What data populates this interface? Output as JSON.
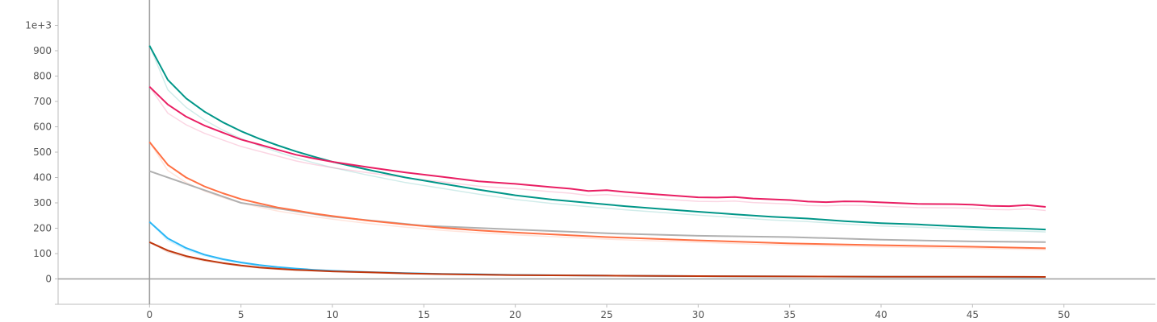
{
  "chart_data": {
    "type": "line",
    "title": "",
    "xlabel": "",
    "ylabel": "",
    "xlim": [
      -5,
      55
    ],
    "ylim": [
      -100,
      1100
    ],
    "x_ticks": [
      0,
      5,
      10,
      15,
      20,
      25,
      30,
      35,
      40,
      45,
      50
    ],
    "y_ticks": [
      0,
      100,
      200,
      300,
      400,
      500,
      600,
      700,
      800,
      900,
      1000
    ],
    "y_tick_labels": [
      "0",
      "100",
      "200",
      "300",
      "400",
      "500",
      "600",
      "700",
      "800",
      "900",
      "1e+3"
    ],
    "grid": false,
    "legend": "none",
    "series": [
      {
        "color": "#b0b0b0",
        "smoothing_shadow": false,
        "x": [
          0,
          5,
          10,
          15,
          20,
          25,
          30,
          35,
          40,
          45,
          49
        ],
        "y": [
          425,
          300,
          245,
          210,
          195,
          180,
          170,
          165,
          155,
          148,
          145
        ]
      },
      {
        "color": "#ff7043",
        "smoothing_shadow": true,
        "x": [
          0,
          1,
          2,
          3,
          4,
          5,
          6,
          7,
          8,
          9,
          10,
          12,
          14,
          16,
          18,
          20,
          25,
          30,
          35,
          40,
          45,
          49
        ],
        "y": [
          540,
          450,
          400,
          365,
          338,
          315,
          298,
          282,
          270,
          258,
          248,
          230,
          215,
          202,
          191,
          183,
          165,
          152,
          140,
          133,
          127,
          121
        ]
      },
      {
        "color": "#009688",
        "smoothing_shadow": true,
        "x": [
          0,
          1,
          2,
          3,
          4,
          5,
          6,
          7,
          8,
          9,
          10,
          12,
          14,
          16,
          18,
          20,
          22,
          24,
          26,
          28,
          30,
          32,
          34,
          36,
          38,
          40,
          42,
          44,
          46,
          48,
          49
        ],
        "y": [
          920,
          785,
          712,
          660,
          618,
          583,
          553,
          527,
          503,
          482,
          462,
          430,
          400,
          376,
          352,
          330,
          313,
          300,
          287,
          276,
          265,
          255,
          245,
          238,
          228,
          220,
          215,
          208,
          202,
          198,
          195
        ]
      },
      {
        "color": "#e91e63",
        "smoothing_shadow": true,
        "x": [
          0,
          1,
          2,
          3,
          4,
          5,
          6,
          7,
          8,
          9,
          10,
          12,
          14,
          16,
          18,
          20,
          22,
          23,
          24,
          25,
          26,
          27,
          28,
          30,
          31,
          32,
          33,
          35,
          36,
          37,
          38,
          39,
          40,
          42,
          44,
          45,
          46,
          47,
          48,
          49
        ],
        "y": [
          758,
          688,
          640,
          605,
          577,
          550,
          530,
          510,
          490,
          475,
          462,
          440,
          420,
          403,
          385,
          375,
          362,
          356,
          347,
          350,
          343,
          337,
          332,
          322,
          321,
          323,
          317,
          311,
          305,
          303,
          306,
          305,
          302,
          296,
          295,
          293,
          288,
          287,
          291,
          284
        ]
      },
      {
        "color": "#29b6f6",
        "smoothing_shadow": true,
        "x": [
          0,
          1,
          2,
          3,
          4,
          5,
          6,
          7,
          8,
          9,
          10,
          12,
          14,
          16,
          18,
          20,
          25,
          30,
          35,
          40,
          45,
          49
        ],
        "y": [
          225,
          160,
          122,
          96,
          78,
          65,
          55,
          47,
          41,
          36,
          32,
          27,
          23,
          20,
          18,
          16,
          13,
          11,
          10,
          9,
          8,
          7
        ]
      },
      {
        "color": "#bf360c",
        "smoothing_shadow": true,
        "x": [
          0,
          1,
          2,
          3,
          4,
          5,
          6,
          7,
          8,
          9,
          10,
          12,
          14,
          16,
          18,
          20,
          25,
          30,
          35,
          40,
          45,
          49
        ],
        "y": [
          145,
          112,
          90,
          75,
          63,
          53,
          45,
          40,
          36,
          33,
          30,
          26,
          22,
          19,
          17,
          15,
          13,
          11,
          10,
          9,
          9,
          8
        ]
      }
    ]
  }
}
